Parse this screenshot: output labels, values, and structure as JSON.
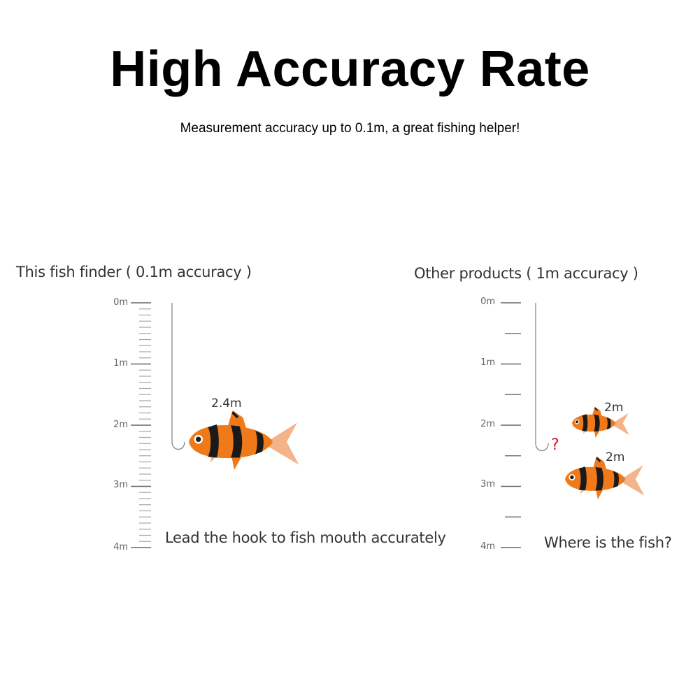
{
  "header": {
    "title": "High Accuracy Rate",
    "subtitle": "Measurement accuracy up to 0.1m, a great fishing helper!"
  },
  "left_panel": {
    "title": "This fish finder ( 0.1m accuracy )",
    "scale_labels": [
      "0m",
      "1m",
      "2m",
      "3m",
      "4m"
    ],
    "fish_depth_label": "2.4m",
    "caption": "Lead the hook to fish mouth accurately"
  },
  "right_panel": {
    "title": "Other products ( 1m accuracy )",
    "scale_labels": [
      "0m",
      "1m",
      "2m",
      "3m",
      "4m"
    ],
    "fish_depth_labels": [
      "2m",
      "2m"
    ],
    "hook_mark": "?",
    "caption": "Where is the fish?"
  },
  "colors": {
    "fish_orange": "#f07a1a",
    "fish_stripe": "#1a1a1a",
    "fish_fin": "#f4b48a",
    "question_mark": "#d0141e",
    "scale_line": "#888888"
  }
}
